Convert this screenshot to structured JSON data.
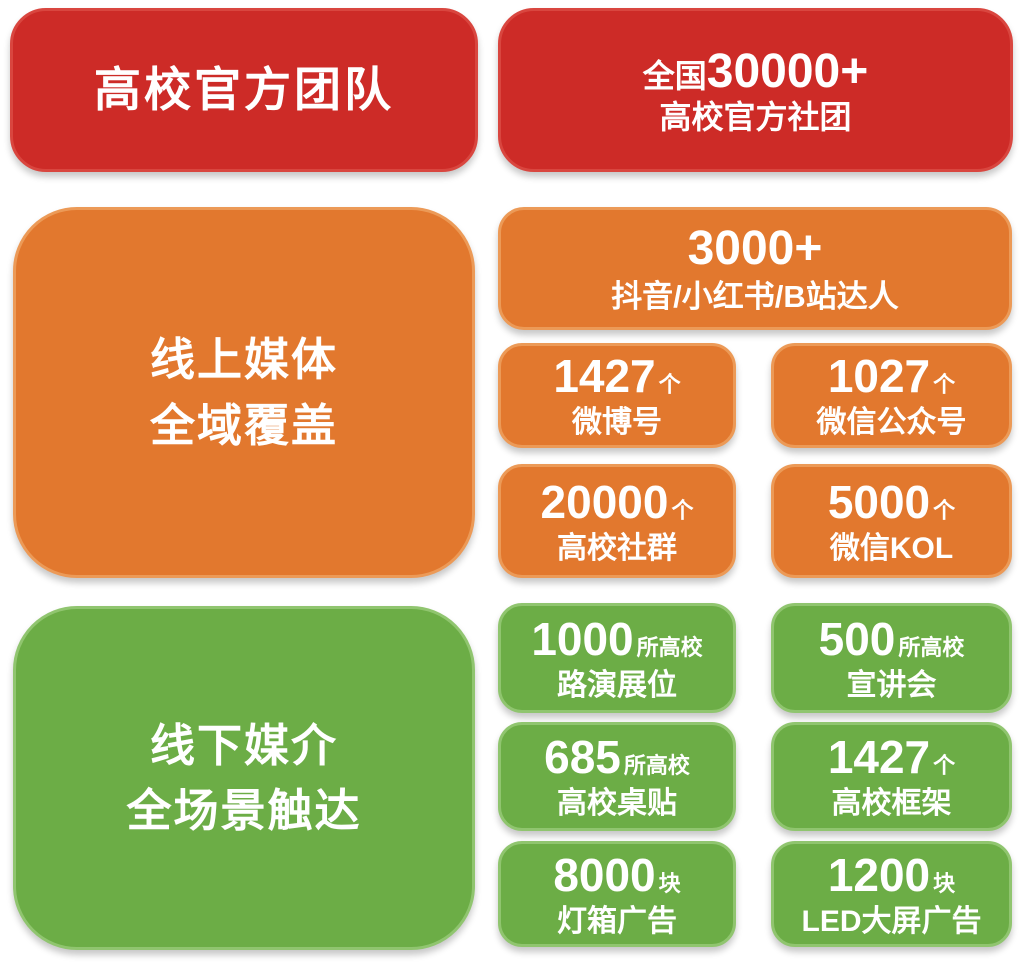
{
  "colors": {
    "background": "#ffffff",
    "red_fill": "#cd2b27",
    "red_border": "#d9463f",
    "orange_fill": "#e2782e",
    "orange_border": "#ec9a57",
    "green_fill": "#6cad46",
    "green_border": "#90c56f",
    "text": "#ffffff"
  },
  "red_section": {
    "title": "高校官方团队",
    "stat": {
      "prefix": "全国",
      "number": "30000+",
      "label": "高校官方社团"
    }
  },
  "online_section": {
    "title_line1": "线上媒体",
    "title_line2": "全域覆盖",
    "wide_stat": {
      "number": "3000+",
      "label": "抖音/小红书/B站达人"
    },
    "stats": [
      {
        "number": "1427",
        "unit": "个",
        "label": "微博号"
      },
      {
        "number": "1027",
        "unit": "个",
        "label": "微信公众号"
      },
      {
        "number": "20000",
        "unit": "个",
        "label": "高校社群"
      },
      {
        "number": "5000",
        "unit": "个",
        "label": "微信KOL"
      }
    ]
  },
  "offline_section": {
    "title_line1": "线下媒介",
    "title_line2": "全场景触达",
    "stats": [
      {
        "number": "1000",
        "unit": "所高校",
        "label": "路演展位"
      },
      {
        "number": "500",
        "unit": "所高校",
        "label": "宣讲会"
      },
      {
        "number": "685",
        "unit": "所高校",
        "label": "高校桌贴"
      },
      {
        "number": "1427",
        "unit": "个",
        "label": "高校框架"
      },
      {
        "number": "8000",
        "unit": "块",
        "label": "灯箱广告"
      },
      {
        "number": "1200",
        "unit": "块",
        "label": "LED大屏广告"
      }
    ]
  }
}
